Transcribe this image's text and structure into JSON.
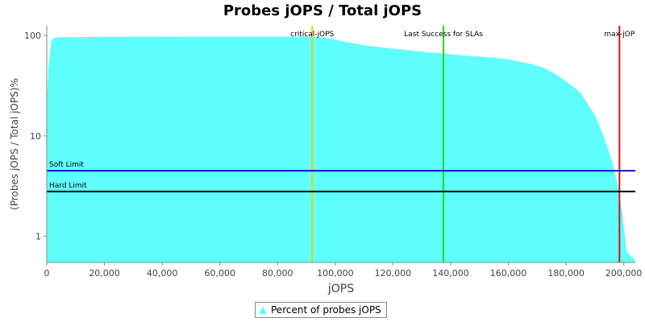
{
  "chart_data": {
    "type": "area",
    "title": "Probes jOPS / Total jOPS",
    "xlabel": "jOPS",
    "ylabel": "(Probes jOPS / Total jOPS)%",
    "y_scale": "log",
    "xlim": [
      0,
      204000
    ],
    "ylim": [
      0.55,
      125
    ],
    "x_ticks": [
      0,
      20000,
      40000,
      60000,
      80000,
      100000,
      120000,
      140000,
      160000,
      180000,
      200000
    ],
    "x_tick_labels": [
      "0",
      "20,000",
      "40,000",
      "60,000",
      "80,000",
      "100,000",
      "120,000",
      "140,000",
      "160,000",
      "180,000",
      "200,000"
    ],
    "y_ticks": [
      1,
      10,
      100
    ],
    "y_tick_labels": [
      "1",
      "10",
      "100"
    ],
    "series": [
      {
        "name": "Percent of probes jOPS",
        "color": "#5ffffe",
        "x": [
          0,
          500,
          1500,
          2500,
          5000,
          20000,
          60000,
          92000,
          97000,
          102000,
          110000,
          120000,
          130000,
          138000,
          145000,
          155000,
          160000,
          165000,
          168000,
          172000,
          176000,
          180000,
          185000,
          190000,
          193000,
          196000,
          198000,
          199500,
          201000,
          203000,
          204000
        ],
        "y": [
          20,
          45,
          88,
          95,
          96,
          97,
          97.5,
          97.5,
          95,
          88,
          80,
          74,
          69,
          66,
          63,
          60,
          58,
          54,
          52,
          48,
          42,
          35,
          27,
          16,
          10,
          5.5,
          3.2,
          1.7,
          0.7,
          0.62,
          0.58
        ]
      }
    ],
    "reference_lines": [
      {
        "orientation": "vertical",
        "label": "critical-jOPS",
        "x": 92000,
        "color": "#f0d000"
      },
      {
        "orientation": "vertical",
        "label": "Last Success for SLAs",
        "x": 137500,
        "color": "#22dd22"
      },
      {
        "orientation": "vertical",
        "label": "max-jOP",
        "x": 198500,
        "color": "#dd1111"
      },
      {
        "orientation": "horizontal",
        "label": "Soft Limit",
        "y": 4.5,
        "color": "#1111dd"
      },
      {
        "orientation": "horizontal",
        "label": "Hard Limit",
        "y": 2.8,
        "color": "#000000"
      }
    ],
    "grid": false,
    "legend_position": "bottom"
  }
}
